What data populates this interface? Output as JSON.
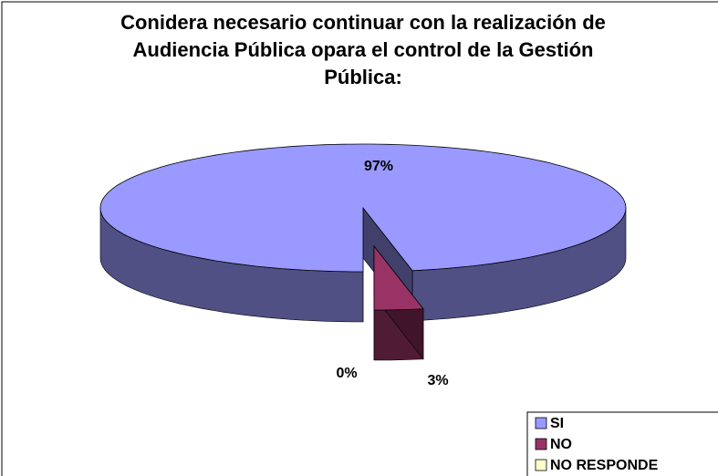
{
  "chart_data": {
    "type": "pie",
    "title": "Conidera necesario continuar con la realización de Audiencia Pública opara el control de la Gestión Pública:",
    "categories": [
      "SI",
      "NO",
      "NO RESPONDE"
    ],
    "values": [
      97,
      3,
      0
    ],
    "value_labels": [
      "97%",
      "3%",
      "0%"
    ],
    "colors": [
      "#9999ff",
      "#993366",
      "#ffffcc"
    ],
    "legend": "bottom-right"
  }
}
